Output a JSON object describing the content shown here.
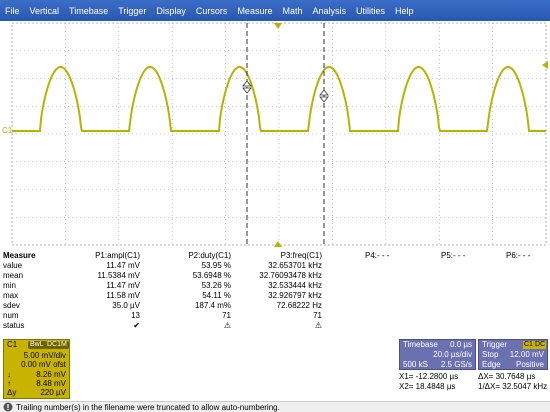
{
  "menu": [
    "File",
    "Vertical",
    "Timebase",
    "Trigger",
    "Display",
    "Cursors",
    "Measure",
    "Math",
    "Analysis",
    "Utilities",
    "Help"
  ],
  "screen": {
    "channel_label": "C1",
    "trace_color": "#b5b500",
    "grid_color": "#9a9a9a",
    "cursor_color": "#333333",
    "trigger_marker_color": "#b5b500"
  },
  "measure": {
    "header": [
      "Measure",
      "P1:ampl(C1)",
      "P2:duty(C1)",
      "P3:freq(C1)",
      "P4:- - -",
      "P5:- - -",
      "P6:- - -"
    ],
    "rows": [
      {
        "label": "value",
        "p1": "11.47 mV",
        "p2": "53.95 %",
        "p3": "32.653701 kHz"
      },
      {
        "label": "mean",
        "p1": "11.5384 mV",
        "p2": "53.6948 %",
        "p3": "32.76093478 kHz"
      },
      {
        "label": "min",
        "p1": "11.47 mV",
        "p2": "53.26 %",
        "p3": "32.533444 kHz"
      },
      {
        "label": "max",
        "p1": "11.58 mV",
        "p2": "54.11 %",
        "p3": "32.926797 kHz"
      },
      {
        "label": "sdev",
        "p1": "35.0 µV",
        "p2": "187.4 m%",
        "p3": "72.68222 Hz"
      },
      {
        "label": "num",
        "p1": "13",
        "p2": "71",
        "p3": "71"
      },
      {
        "label": "status",
        "p1": "✔",
        "p2": "⚠",
        "p3": "⚠"
      }
    ]
  },
  "channel": {
    "name": "C1",
    "badge1": "BwL",
    "badge2": "DC1M",
    "vdiv": "5.00 mV/div",
    "offset": "0.00 mV ofst",
    "cur1_label": "↓",
    "cur1": "8.26 mV",
    "cur2_label": "↑",
    "cur2": "8.48 mV",
    "delta_label": "Δy",
    "delta": "220 µV"
  },
  "timebase": {
    "title": "Timebase",
    "delay": "0.0 µs",
    "tdiv": "20.0 µs/div",
    "samples": "500 kS",
    "rate": "2.5 GS/s"
  },
  "trigger": {
    "title": "Trigger",
    "badge1": "C1",
    "badge2": "DC",
    "mode": "Stop",
    "level": "12.00 mV",
    "type": "Edge",
    "slope": "Positive"
  },
  "cursors": {
    "x1": "X1= -12.2800 µs",
    "dx": "ΔX=     30.7648 µs",
    "x2": "X2=  18.4848 µs",
    "inv_dx": "1/ΔX=  32.5047 kHz"
  },
  "status_text": "Trailing number(s) in the filename were truncated to allow auto-numbering."
}
